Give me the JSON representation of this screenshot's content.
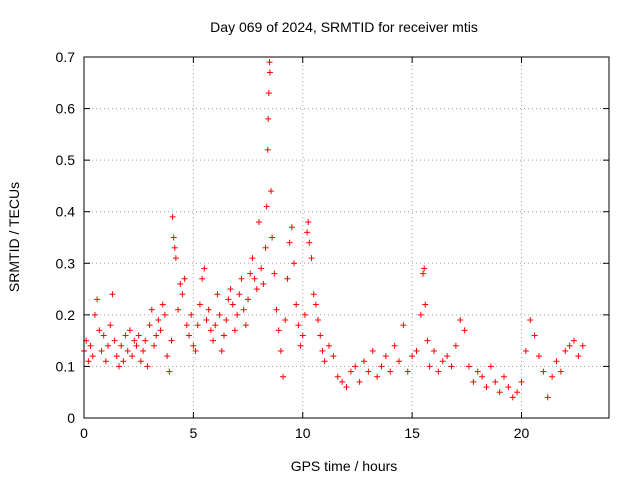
{
  "chart_data": {
    "type": "scatter",
    "title": "Day 069 of 2024, SRMTID for receiver mtis",
    "xlabel": "GPS time / hours",
    "ylabel": "SRMTID / TECUs",
    "xlim": [
      0,
      24
    ],
    "ylim": [
      0,
      0.7
    ],
    "xticks": [
      0,
      5,
      10,
      15,
      20
    ],
    "xtick_labels": [
      "0",
      "5",
      "10",
      "15",
      "20"
    ],
    "yticks": [
      0,
      0.1,
      0.2,
      0.3,
      0.4,
      0.5,
      0.6,
      0.7
    ],
    "ytick_labels": [
      "0",
      "0.1",
      "0.2",
      "0.3",
      "0.4",
      "0.5",
      "0.6",
      "0.7"
    ],
    "grid": true,
    "marker": "+",
    "color": "#ff0000",
    "series": [
      {
        "name": "SRMTID",
        "points": [
          [
            0.0,
            0.13
          ],
          [
            0.1,
            0.15
          ],
          [
            0.2,
            0.11
          ],
          [
            0.3,
            0.14
          ],
          [
            0.4,
            0.12
          ],
          [
            0.5,
            0.2
          ],
          [
            0.6,
            0.23
          ],
          [
            0.7,
            0.17
          ],
          [
            0.8,
            0.13
          ],
          [
            0.9,
            0.16
          ],
          [
            1.0,
            0.11
          ],
          [
            1.1,
            0.14
          ],
          [
            1.2,
            0.18
          ],
          [
            1.3,
            0.24
          ],
          [
            1.4,
            0.15
          ],
          [
            1.5,
            0.12
          ],
          [
            1.6,
            0.1
          ],
          [
            1.7,
            0.14
          ],
          [
            1.8,
            0.11
          ],
          [
            1.9,
            0.16
          ],
          [
            2.0,
            0.13
          ],
          [
            2.1,
            0.17
          ],
          [
            2.2,
            0.12
          ],
          [
            2.3,
            0.15
          ],
          [
            2.4,
            0.14
          ],
          [
            2.5,
            0.16
          ],
          [
            2.6,
            0.11
          ],
          [
            2.7,
            0.13
          ],
          [
            2.8,
            0.15
          ],
          [
            2.9,
            0.1
          ],
          [
            3.0,
            0.18
          ],
          [
            3.1,
            0.21
          ],
          [
            3.2,
            0.14
          ],
          [
            3.3,
            0.16
          ],
          [
            3.4,
            0.19
          ],
          [
            3.5,
            0.17
          ],
          [
            3.6,
            0.22
          ],
          [
            3.7,
            0.2
          ],
          [
            3.8,
            0.12
          ],
          [
            3.9,
            0.09
          ],
          [
            4.0,
            0.15
          ],
          [
            4.05,
            0.39
          ],
          [
            4.1,
            0.35
          ],
          [
            4.15,
            0.33
          ],
          [
            4.2,
            0.31
          ],
          [
            4.3,
            0.21
          ],
          [
            4.4,
            0.26
          ],
          [
            4.5,
            0.24
          ],
          [
            4.6,
            0.27
          ],
          [
            4.7,
            0.18
          ],
          [
            4.8,
            0.16
          ],
          [
            4.9,
            0.2
          ],
          [
            5.0,
            0.14
          ],
          [
            5.1,
            0.13
          ],
          [
            5.2,
            0.18
          ],
          [
            5.3,
            0.22
          ],
          [
            5.4,
            0.27
          ],
          [
            5.5,
            0.29
          ],
          [
            5.6,
            0.19
          ],
          [
            5.7,
            0.21
          ],
          [
            5.8,
            0.17
          ],
          [
            5.9,
            0.15
          ],
          [
            6.0,
            0.18
          ],
          [
            6.1,
            0.24
          ],
          [
            6.2,
            0.2
          ],
          [
            6.3,
            0.13
          ],
          [
            6.4,
            0.16
          ],
          [
            6.5,
            0.19
          ],
          [
            6.6,
            0.23
          ],
          [
            6.7,
            0.25
          ],
          [
            6.8,
            0.22
          ],
          [
            6.9,
            0.17
          ],
          [
            7.0,
            0.2
          ],
          [
            7.1,
            0.24
          ],
          [
            7.2,
            0.27
          ],
          [
            7.3,
            0.21
          ],
          [
            7.4,
            0.18
          ],
          [
            7.5,
            0.23
          ],
          [
            7.6,
            0.28
          ],
          [
            7.7,
            0.31
          ],
          [
            7.8,
            0.27
          ],
          [
            7.9,
            0.25
          ],
          [
            8.0,
            0.38
          ],
          [
            8.1,
            0.29
          ],
          [
            8.2,
            0.26
          ],
          [
            8.3,
            0.33
          ],
          [
            8.35,
            0.41
          ],
          [
            8.4,
            0.52
          ],
          [
            8.42,
            0.58
          ],
          [
            8.45,
            0.63
          ],
          [
            8.48,
            0.69
          ],
          [
            8.5,
            0.67
          ],
          [
            8.55,
            0.44
          ],
          [
            8.6,
            0.35
          ],
          [
            8.7,
            0.28
          ],
          [
            8.8,
            0.21
          ],
          [
            8.9,
            0.17
          ],
          [
            9.0,
            0.13
          ],
          [
            9.1,
            0.08
          ],
          [
            9.2,
            0.19
          ],
          [
            9.3,
            0.27
          ],
          [
            9.4,
            0.34
          ],
          [
            9.5,
            0.37
          ],
          [
            9.6,
            0.3
          ],
          [
            9.7,
            0.22
          ],
          [
            9.8,
            0.18
          ],
          [
            9.9,
            0.14
          ],
          [
            10.0,
            0.16
          ],
          [
            10.1,
            0.2
          ],
          [
            10.2,
            0.36
          ],
          [
            10.25,
            0.38
          ],
          [
            10.3,
            0.34
          ],
          [
            10.4,
            0.31
          ],
          [
            10.5,
            0.24
          ],
          [
            10.6,
            0.22
          ],
          [
            10.7,
            0.19
          ],
          [
            10.8,
            0.16
          ],
          [
            10.9,
            0.13
          ],
          [
            11.0,
            0.11
          ],
          [
            11.2,
            0.14
          ],
          [
            11.4,
            0.12
          ],
          [
            11.6,
            0.08
          ],
          [
            11.8,
            0.07
          ],
          [
            12.0,
            0.06
          ],
          [
            12.2,
            0.09
          ],
          [
            12.4,
            0.1
          ],
          [
            12.6,
            0.07
          ],
          [
            12.8,
            0.11
          ],
          [
            13.0,
            0.09
          ],
          [
            13.2,
            0.13
          ],
          [
            13.4,
            0.08
          ],
          [
            13.6,
            0.1
          ],
          [
            13.8,
            0.12
          ],
          [
            14.0,
            0.09
          ],
          [
            14.2,
            0.14
          ],
          [
            14.4,
            0.11
          ],
          [
            14.6,
            0.18
          ],
          [
            14.8,
            0.09
          ],
          [
            15.0,
            0.12
          ],
          [
            15.2,
            0.13
          ],
          [
            15.4,
            0.2
          ],
          [
            15.5,
            0.28
          ],
          [
            15.55,
            0.29
          ],
          [
            15.6,
            0.22
          ],
          [
            15.7,
            0.15
          ],
          [
            15.8,
            0.1
          ],
          [
            16.0,
            0.13
          ],
          [
            16.2,
            0.09
          ],
          [
            16.4,
            0.11
          ],
          [
            16.6,
            0.12
          ],
          [
            16.8,
            0.1
          ],
          [
            17.0,
            0.14
          ],
          [
            17.2,
            0.19
          ],
          [
            17.4,
            0.17
          ],
          [
            17.6,
            0.1
          ],
          [
            17.8,
            0.07
          ],
          [
            18.0,
            0.09
          ],
          [
            18.2,
            0.08
          ],
          [
            18.4,
            0.06
          ],
          [
            18.6,
            0.1
          ],
          [
            18.8,
            0.07
          ],
          [
            19.0,
            0.05
          ],
          [
            19.2,
            0.08
          ],
          [
            19.4,
            0.06
          ],
          [
            19.6,
            0.04
          ],
          [
            19.8,
            0.05
          ],
          [
            20.0,
            0.07
          ],
          [
            20.2,
            0.13
          ],
          [
            20.4,
            0.19
          ],
          [
            20.6,
            0.16
          ],
          [
            20.8,
            0.12
          ],
          [
            21.0,
            0.09
          ],
          [
            21.2,
            0.04
          ],
          [
            21.4,
            0.08
          ],
          [
            21.6,
            0.11
          ],
          [
            21.8,
            0.09
          ],
          [
            22.0,
            0.13
          ],
          [
            22.2,
            0.14
          ],
          [
            22.4,
            0.15
          ],
          [
            22.6,
            0.12
          ],
          [
            22.8,
            0.14
          ]
        ]
      }
    ]
  }
}
